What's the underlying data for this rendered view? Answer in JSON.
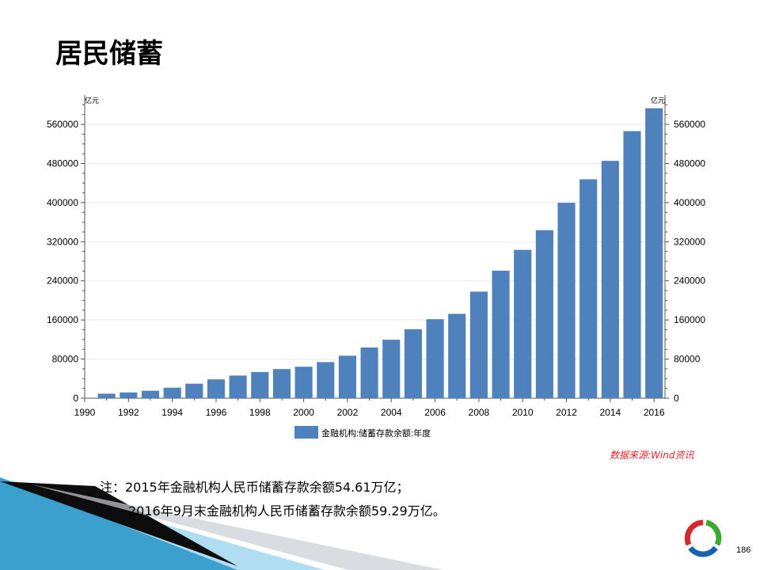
{
  "page": {
    "title": "居民储蓄",
    "source": "数据来源:Wind资讯",
    "note_line1": "注：2015年金融机构人民币储蓄存款余额54.61万亿；",
    "note_line2": "2016年9月末金融机构人民币储蓄存款余额59.29万亿。",
    "page_number": "186"
  },
  "colors": {
    "bar": "#4f81bd",
    "source_text": "#d9262b",
    "deco_dark": "#0d0d0d",
    "deco_blue": "#1a8fc7"
  },
  "chart_data": {
    "type": "bar",
    "title": "",
    "y_unit_left": "亿元",
    "y_unit_right": "亿元",
    "legend": "金融机构:储蓄存款余额:年度",
    "x_ticks": [
      "1990",
      "1992",
      "1994",
      "1996",
      "1998",
      "2000",
      "2002",
      "2004",
      "2006",
      "2008",
      "2010",
      "2012",
      "2014",
      "2016"
    ],
    "y_ticks": [
      "0",
      "80000",
      "160000",
      "240000",
      "320000",
      "400000",
      "480000",
      "560000"
    ],
    "ylim": [
      0,
      620000
    ],
    "xlim": [
      1990,
      2016.5
    ],
    "categories": [
      "1991",
      "1992",
      "1993",
      "1994",
      "1995",
      "1996",
      "1997",
      "1998",
      "1999",
      "2000",
      "2001",
      "2002",
      "2003",
      "2004",
      "2005",
      "2006",
      "2007",
      "2008",
      "2009",
      "2010",
      "2011",
      "2012",
      "2013",
      "2014",
      "2015",
      "2016"
    ],
    "values": [
      9200,
      11800,
      15200,
      21500,
      29700,
      38500,
      46300,
      53400,
      59600,
      64300,
      73800,
      86900,
      103600,
      119600,
      141100,
      161600,
      172500,
      217900,
      260800,
      303300,
      343600,
      399600,
      447600,
      485300,
      546100,
      592900
    ]
  }
}
